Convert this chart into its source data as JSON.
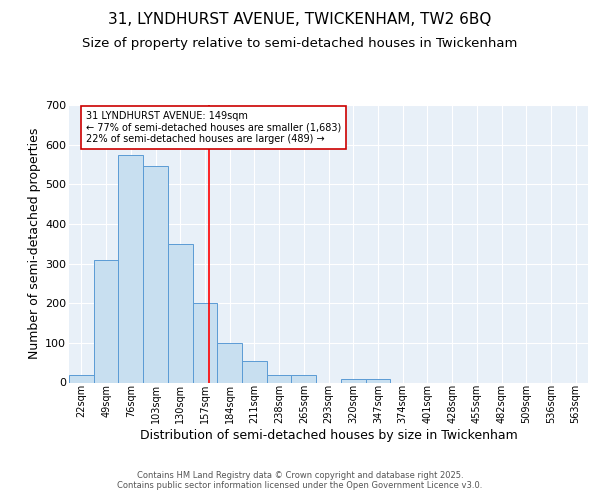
{
  "title1": "31, LYNDHURST AVENUE, TWICKENHAM, TW2 6BQ",
  "title2": "Size of property relative to semi-detached houses in Twickenham",
  "xlabel": "Distribution of semi-detached houses by size in Twickenham",
  "ylabel": "Number of semi-detached properties",
  "bar_labels": [
    "22sqm",
    "49sqm",
    "76sqm",
    "103sqm",
    "130sqm",
    "157sqm",
    "184sqm",
    "211sqm",
    "238sqm",
    "265sqm",
    "293sqm",
    "320sqm",
    "347sqm",
    "374sqm",
    "401sqm",
    "428sqm",
    "455sqm",
    "482sqm",
    "509sqm",
    "536sqm",
    "563sqm"
  ],
  "bar_heights": [
    20,
    310,
    575,
    545,
    350,
    200,
    100,
    55,
    20,
    20,
    0,
    8,
    8,
    0,
    0,
    0,
    0,
    0,
    0,
    0,
    0
  ],
  "bar_color": "#c8dff0",
  "bar_edge_color": "#5b9bd5",
  "background_color": "#e8f0f8",
  "grid_color": "#ffffff",
  "red_line_x": 5.18,
  "annotation_text": "31 LYNDHURST AVENUE: 149sqm\n← 77% of semi-detached houses are smaller (1,683)\n22% of semi-detached houses are larger (489) →",
  "annotation_box_color": "#ffffff",
  "annotation_box_edge": "#cc0000",
  "footer_text": "Contains HM Land Registry data © Crown copyright and database right 2025.\nContains public sector information licensed under the Open Government Licence v3.0.",
  "ylim": [
    0,
    700
  ],
  "title1_fontsize": 11,
  "title2_fontsize": 9.5,
  "xlabel_fontsize": 9,
  "ylabel_fontsize": 9,
  "annotation_fontsize": 7,
  "tick_fontsize": 7,
  "ytick_fontsize": 8
}
